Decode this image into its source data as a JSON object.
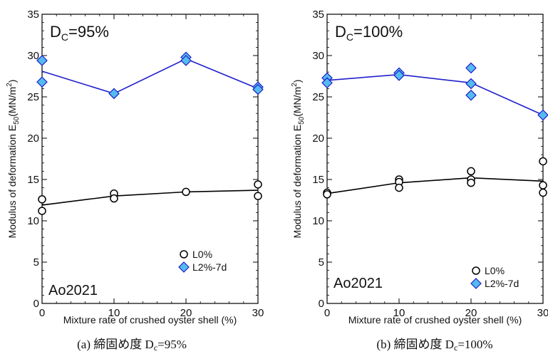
{
  "chart_data": [
    {
      "type": "scatter",
      "panel": "a",
      "annotation_main": "D",
      "annotation_sub": "C",
      "annotation_value": "=95%",
      "annotation_id": "Ao2021",
      "xlabel": "Mixture rate of crushed oyster shell (%)",
      "ylabel": "Modulus of deformation E",
      "ylabel_sub": "50",
      "ylabel_unit": "(MN/m",
      "ylabel_sup": "2",
      "ylabel_end": ")",
      "xlim": [
        0,
        30
      ],
      "ylim": [
        0,
        35
      ],
      "xticks": [
        0,
        10,
        20,
        30
      ],
      "yticks": [
        0,
        5,
        10,
        15,
        20,
        25,
        30,
        35
      ],
      "caption": "(a)  締固め度 D",
      "caption_sub": "c",
      "caption_end": "=95%",
      "series": [
        {
          "name": "L0%",
          "marker": "circle",
          "color": "#000000",
          "points": [
            [
              0,
              12.6
            ],
            [
              0,
              11.2
            ],
            [
              10,
              13.3
            ],
            [
              10,
              12.7
            ],
            [
              20,
              13.5
            ],
            [
              30,
              14.4
            ],
            [
              30,
              13.0
            ]
          ],
          "trend": [
            [
              0,
              11.9
            ],
            [
              10,
              13.0
            ],
            [
              20,
              13.5
            ],
            [
              30,
              13.7
            ]
          ]
        },
        {
          "name": "L2%-7d",
          "marker": "diamond",
          "color": "#1f1fcc",
          "fill": "#55bbee",
          "points": [
            [
              0,
              29.4
            ],
            [
              0,
              26.8
            ],
            [
              10,
              25.4
            ],
            [
              20,
              29.8
            ],
            [
              20,
              29.4
            ],
            [
              30,
              26.2
            ],
            [
              30,
              25.9
            ]
          ],
          "trend": [
            [
              0,
              28.1
            ],
            [
              10,
              25.4
            ],
            [
              20,
              29.6
            ],
            [
              30,
              26.0
            ]
          ]
        }
      ]
    },
    {
      "type": "scatter",
      "panel": "b",
      "annotation_main": "D",
      "annotation_sub": "C",
      "annotation_value": "=100%",
      "annotation_id": "Ao2021",
      "xlabel": "Mixture rate of crushed oyster shell (%)",
      "ylabel": "Modulus of deformation E",
      "ylabel_sub": "50",
      "ylabel_unit": "(MN/m",
      "ylabel_sup": "2",
      "ylabel_end": ")",
      "xlim": [
        0,
        30
      ],
      "ylim": [
        0,
        35
      ],
      "xticks": [
        0,
        10,
        20,
        30
      ],
      "yticks": [
        0,
        5,
        10,
        15,
        20,
        25,
        30,
        35
      ],
      "caption": "(b)  締固め度 D",
      "caption_sub": "c",
      "caption_end": "=100%",
      "series": [
        {
          "name": "L0%",
          "marker": "circle",
          "color": "#000000",
          "points": [
            [
              0,
              13.4
            ],
            [
              0,
              13.2
            ],
            [
              10,
              15.0
            ],
            [
              10,
              14.7
            ],
            [
              10,
              14.0
            ],
            [
              20,
              16.0
            ],
            [
              20,
              15.0
            ],
            [
              20,
              14.6
            ],
            [
              30,
              17.2
            ],
            [
              30,
              14.3
            ],
            [
              30,
              13.4
            ]
          ],
          "trend": [
            [
              0,
              13.3
            ],
            [
              10,
              14.6
            ],
            [
              20,
              15.2
            ],
            [
              30,
              14.8
            ]
          ]
        },
        {
          "name": "L2%-7d",
          "marker": "diamond",
          "color": "#1f1fcc",
          "fill": "#55bbee",
          "points": [
            [
              0,
              27.3
            ],
            [
              0,
              26.7
            ],
            [
              10,
              27.9
            ],
            [
              10,
              27.6
            ],
            [
              20,
              28.5
            ],
            [
              20,
              26.6
            ],
            [
              20,
              25.2
            ],
            [
              30,
              22.8
            ]
          ],
          "trend": [
            [
              0,
              27.0
            ],
            [
              10,
              27.7
            ],
            [
              20,
              26.7
            ],
            [
              30,
              22.8
            ]
          ]
        }
      ]
    }
  ]
}
